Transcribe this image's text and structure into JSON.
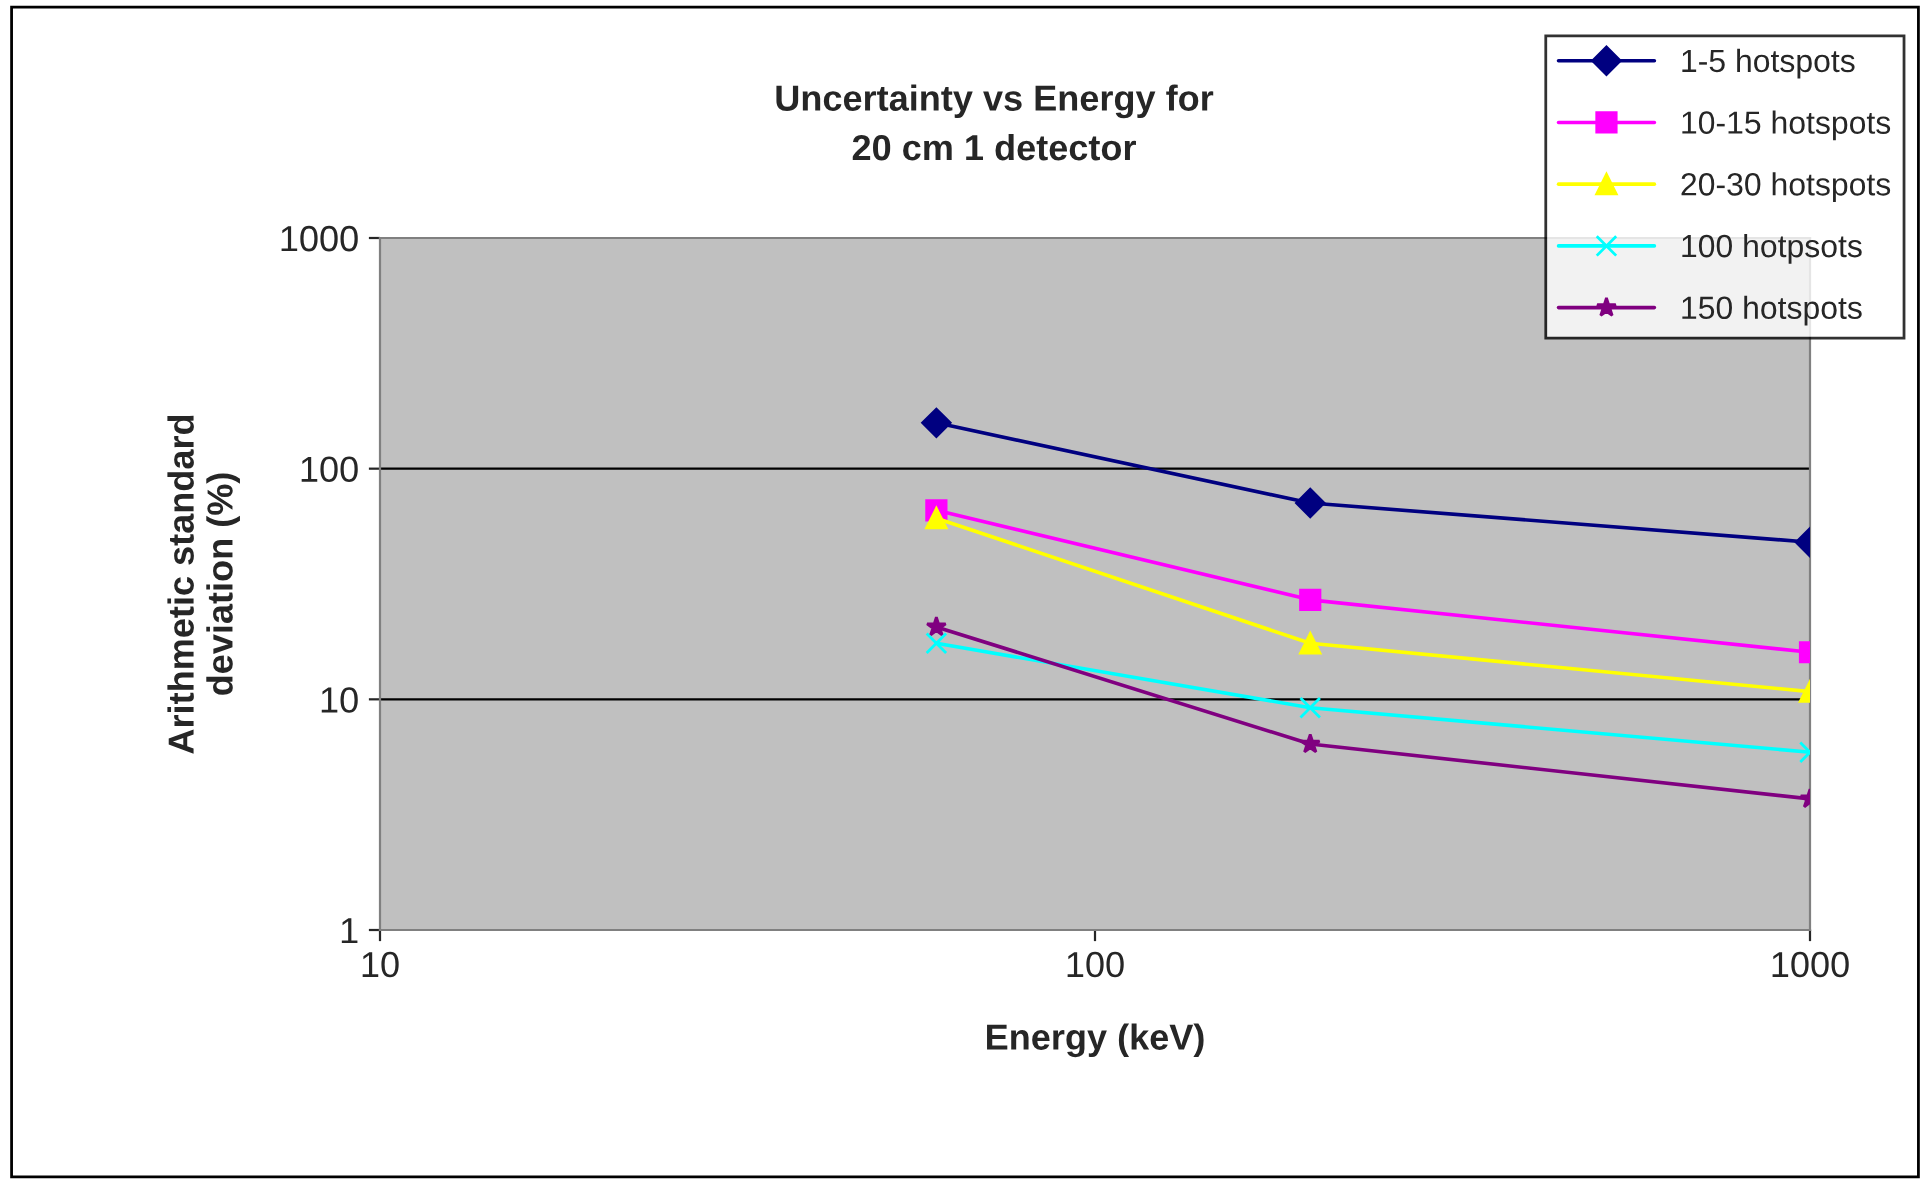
{
  "chart_data": {
    "type": "line",
    "title": "Uncertainty vs Energy for\n20 cm 1 detector",
    "xlabel": "Energy (keV)",
    "ylabel": "Arithmetic standard\ndeviation (%)",
    "x": [
      60,
      200,
      1000
    ],
    "log": "xy",
    "xlim": [
      10,
      1000
    ],
    "xticks": [
      10,
      100,
      1000
    ],
    "ylim": [
      1,
      1000
    ],
    "yticks": [
      1,
      10,
      100,
      1000
    ],
    "grid": "y",
    "legend": "top right",
    "series": [
      {
        "name": "1-5 hotspots",
        "color": "#000080",
        "marker": "diamond",
        "values": [
          158,
          71,
          48
        ]
      },
      {
        "name": "10-15 hotspots",
        "color": "#ff00ff",
        "marker": "square",
        "values": [
          66,
          27,
          16
        ]
      },
      {
        "name": "20-30 hotspots",
        "color": "#ffff00",
        "marker": "triangle",
        "values": [
          61,
          17.5,
          10.8
        ]
      },
      {
        "name": "100 hotpsots",
        "color": "#00ffff",
        "marker": "cross",
        "values": [
          17.5,
          9.2,
          5.9
        ]
      },
      {
        "name": "150 hotspots",
        "color": "#800080",
        "marker": "star",
        "values": [
          20.6,
          6.4,
          3.7
        ]
      }
    ]
  }
}
